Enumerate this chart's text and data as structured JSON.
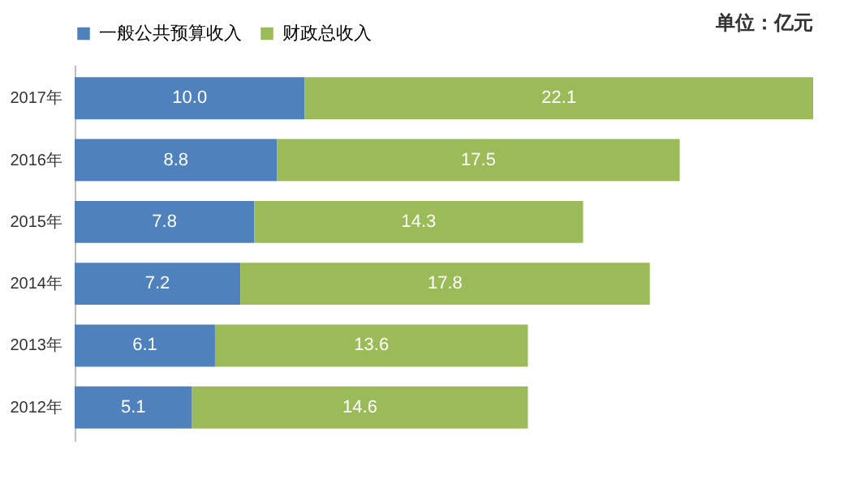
{
  "chart_data": {
    "type": "bar",
    "orientation": "horizontal",
    "stacked": true,
    "tick_labels": "y",
    "legend": "top",
    "categories": [
      "2017年",
      "2016年",
      "2015年",
      "2014年",
      "2013年",
      "2012年"
    ],
    "series": [
      {
        "name": "一般公共预算收入",
        "color": "#4f81bd",
        "values": [
          10.0,
          8.8,
          7.8,
          7.2,
          6.1,
          5.1
        ],
        "value_labels": [
          "10.0",
          "8.8",
          "7.8",
          "7.2",
          "6.1",
          "5.1"
        ]
      },
      {
        "name": "财政总收入",
        "color": "#9bbb59",
        "values": [
          22.1,
          17.5,
          14.3,
          17.8,
          13.6,
          14.6
        ],
        "value_labels": [
          "22.1",
          "17.5",
          "14.3",
          "17.8",
          "13.6",
          "14.6"
        ]
      }
    ],
    "annotations": [
      "单位：亿元"
    ]
  }
}
